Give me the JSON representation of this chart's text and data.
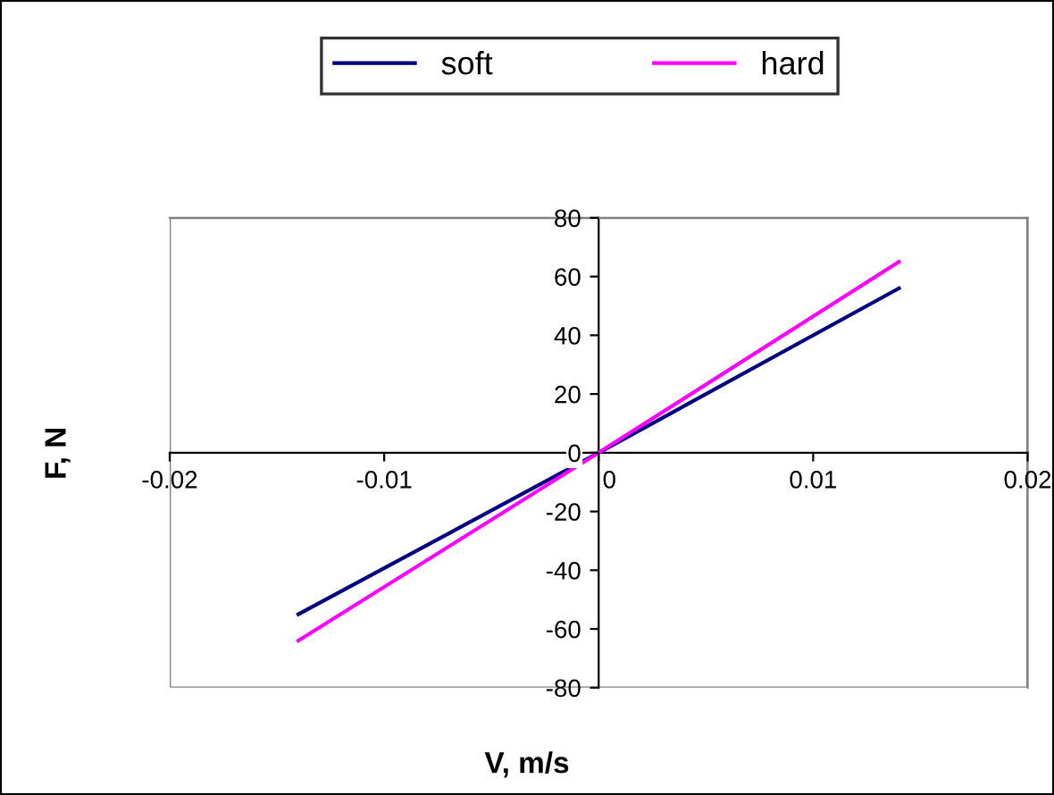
{
  "chart_data": {
    "type": "line",
    "xlabel": "V, m/s",
    "ylabel": "F, N",
    "x": [
      -0.014,
      0,
      0.014
    ],
    "series": [
      {
        "name": "soft",
        "color": "#000080",
        "values": [
          -55,
          0,
          56
        ]
      },
      {
        "name": "hard",
        "color": "#ff00ff",
        "values": [
          -64,
          0,
          65
        ]
      }
    ],
    "xlim": [
      -0.02,
      0.02
    ],
    "xticks": [
      -0.02,
      -0.01,
      0,
      0.01,
      0.02
    ],
    "ylim": [
      -80,
      80
    ],
    "yticks": [
      -80,
      -60,
      -40,
      -20,
      0,
      20,
      40,
      60,
      80
    ],
    "grid": false,
    "legend": "top",
    "marker": "none",
    "line_style": "solid"
  }
}
